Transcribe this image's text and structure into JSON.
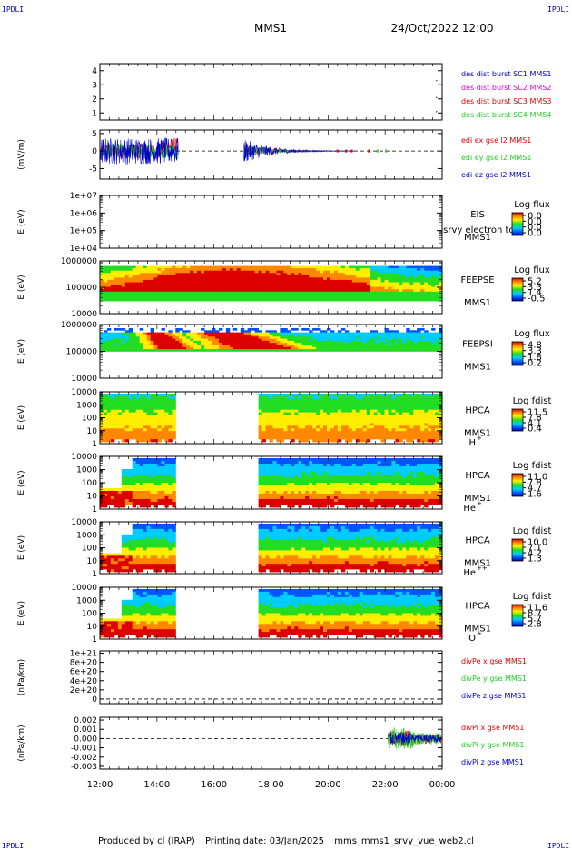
{
  "corner_labels": [
    "IPDLI",
    "IPDLI",
    "IPDLI",
    "IPDLI"
  ],
  "header": {
    "spacecraft": "MMS1",
    "datetime": "24/Oct/2022 12:00"
  },
  "footer": {
    "produced_by": "Produced by cl (IRAP)",
    "printing_date": "Printing date: 03/Jan/2025",
    "filename": "mms_mms1_srvy_vue_web2.cl"
  },
  "colors": {
    "red": "#dd0000",
    "magenta": "#dd00dd",
    "green": "#22cc22",
    "blue": "#0000cc",
    "orange": "#ff8800"
  },
  "chart_data": [
    {
      "type": "line",
      "id": "burst",
      "ylim": [
        0.5,
        4.5
      ],
      "ticks": [
        "1",
        "2",
        "3",
        "4"
      ],
      "tick_values": [
        1,
        2,
        3,
        4
      ],
      "ylabel": "",
      "series": [
        {
          "name": "des dist burst SC1 MMS1",
          "color": "#0000cc"
        },
        {
          "name": "des dist burst SC2 MMS2",
          "color": "#dd00dd"
        },
        {
          "name": "des dist burst SC3 MMS3",
          "color": "#dd0000"
        },
        {
          "name": "des dist burst SC4 MMS4",
          "color": "#22cc22"
        }
      ]
    },
    {
      "type": "line",
      "id": "edi",
      "ylim": [
        -8,
        6
      ],
      "ticks": [
        "5",
        "0",
        "-5"
      ],
      "tick_values": [
        5,
        0,
        -5
      ],
      "ylabel": "(mV/m)",
      "series": [
        {
          "name": "edi ex gse l2 MMS1",
          "color": "#dd0000"
        },
        {
          "name": "edi ey gse l2 MMS1",
          "color": "#22cc22"
        },
        {
          "name": "edi ez gse l2 MMS1",
          "color": "#0000cc"
        }
      ]
    },
    {
      "type": "heatmap",
      "id": "eis",
      "ylabel": "E (eV)",
      "ticks": [
        "1e+07",
        "1e+06",
        "1e+05",
        "1e+04"
      ],
      "instrument": "EIS",
      "instrument_overlay": "I srvy electron to",
      "sc": "MMS1",
      "colorbar_title": "Log flux",
      "colorbar_ticks": [
        "0.0",
        "0.0",
        "0.0",
        "0.0"
      ]
    },
    {
      "type": "heatmap",
      "id": "feepse",
      "ylabel": "E (eV)",
      "ticks": [
        "1000000",
        "100000",
        "10000"
      ],
      "instrument": "FEEPSE",
      "sc": "MMS1",
      "colorbar_title": "Log flux",
      "colorbar_ticks": [
        "5.2",
        "3.3",
        "1.4",
        "-0.5"
      ]
    },
    {
      "type": "heatmap",
      "id": "feepsi",
      "ylabel": "E (eV)",
      "ticks": [
        "1000000",
        "100000",
        "10000"
      ],
      "instrument": "FEEPSI",
      "sc": "MMS1",
      "colorbar_title": "Log flux",
      "colorbar_ticks": [
        "4.8",
        "3.3",
        "1.8",
        "0.2"
      ]
    },
    {
      "type": "heatmap",
      "id": "hpca_h",
      "ylabel": "E (eV)",
      "ticks": [
        "10000",
        "1000",
        "100",
        "10",
        "1"
      ],
      "instrument": "HPCA",
      "sc": "MMS1",
      "species": "H",
      "charge": "+",
      "colorbar_title": "Log fdist",
      "colorbar_ticks": [
        "11.5",
        "7.8",
        "4.1",
        "0.4"
      ]
    },
    {
      "type": "heatmap",
      "id": "hpca_he",
      "ylabel": "E (eV)",
      "ticks": [
        "10000",
        "1000",
        "100",
        "10",
        "1"
      ],
      "instrument": "HPCA",
      "sc": "MMS1",
      "species": "He",
      "charge": "+",
      "colorbar_title": "Log fdist",
      "colorbar_ticks": [
        "11.0",
        "7.8",
        "4.7",
        "1.6"
      ]
    },
    {
      "type": "heatmap",
      "id": "hpca_hepp",
      "ylabel": "E (eV)",
      "ticks": [
        "10000",
        "1000",
        "100",
        "10",
        "1"
      ],
      "instrument": "HPCA",
      "sc": "MMS1",
      "species": "He",
      "charge": "++",
      "colorbar_title": "Log fdist",
      "colorbar_ticks": [
        "10.0",
        "7.1",
        "4.2",
        "1.3"
      ]
    },
    {
      "type": "heatmap",
      "id": "hpca_o",
      "ylabel": "E (eV)",
      "ticks": [
        "10000",
        "1000",
        "100",
        "10",
        "1"
      ],
      "instrument": "HPCA",
      "sc": "MMS1",
      "species": "O",
      "charge": "+",
      "colorbar_title": "Log fdist",
      "colorbar_ticks": [
        "11.6",
        "8.7",
        "5.7",
        "2.8"
      ]
    },
    {
      "type": "line",
      "id": "divpe",
      "ylabel": "(nPa/km)",
      "ylim": [
        -1e+20,
        1.05e+21
      ],
      "ticks": [
        "1e+21",
        "8e+20",
        "6e+20",
        "4e+20",
        "2e+20",
        "0"
      ],
      "tick_values": [
        1e+21,
        8e+20,
        6e+20,
        4e+20,
        2e+20,
        0
      ],
      "series": [
        {
          "name": "divPe x gse MMS1",
          "color": "#dd0000"
        },
        {
          "name": "divPe y gse MMS1",
          "color": "#22cc22"
        },
        {
          "name": "divPe z gse MMS1",
          "color": "#0000cc"
        }
      ]
    },
    {
      "type": "line",
      "id": "divpi",
      "ylabel": "(nPa/km)",
      "ylim": [
        -0.0033,
        0.0023
      ],
      "ticks": [
        "0.002",
        "0.001",
        "0.000",
        "-0.001",
        "-0.002",
        "-0.003"
      ],
      "tick_values": [
        0.002,
        0.001,
        0,
        -0.001,
        -0.002,
        -0.003
      ],
      "series": [
        {
          "name": "divPi x gse MMS1",
          "color": "#dd0000"
        },
        {
          "name": "divPi y gse MMS1",
          "color": "#22cc22"
        },
        {
          "name": "divPi z gse MMS1",
          "color": "#0000cc"
        }
      ]
    }
  ],
  "time_axis": {
    "labels": [
      "12:00",
      "14:00",
      "16:00",
      "18:00",
      "20:00",
      "22:00",
      "00:00"
    ],
    "hours": [
      12,
      14,
      16,
      18,
      20,
      22,
      24
    ],
    "xlim": [
      12,
      24
    ]
  },
  "data_gap": {
    "start_hour": 14.7,
    "end_hour": 17.5
  }
}
